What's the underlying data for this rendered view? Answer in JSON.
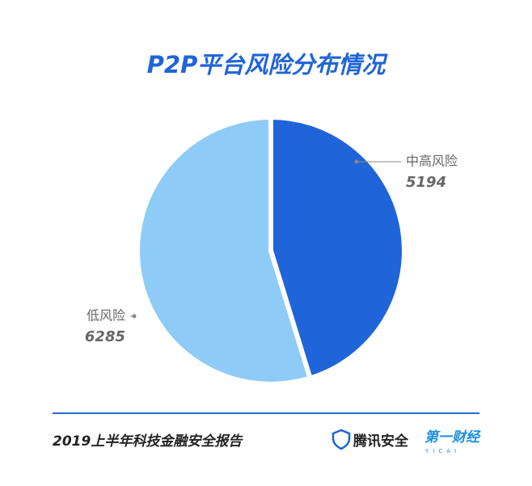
{
  "chart_data": {
    "type": "pie",
    "title": "P2P平台风险分布情况",
    "categories": [
      "中高风险",
      "低风险"
    ],
    "values": [
      5194,
      6285
    ],
    "colors": [
      "#1f64d8",
      "#8ecbf7"
    ]
  },
  "footer": {
    "report": "2019上半年科技金融安全报告",
    "brand1": "腾讯安全",
    "brand2": "第一财经",
    "brand2_sub": "YICAI"
  }
}
